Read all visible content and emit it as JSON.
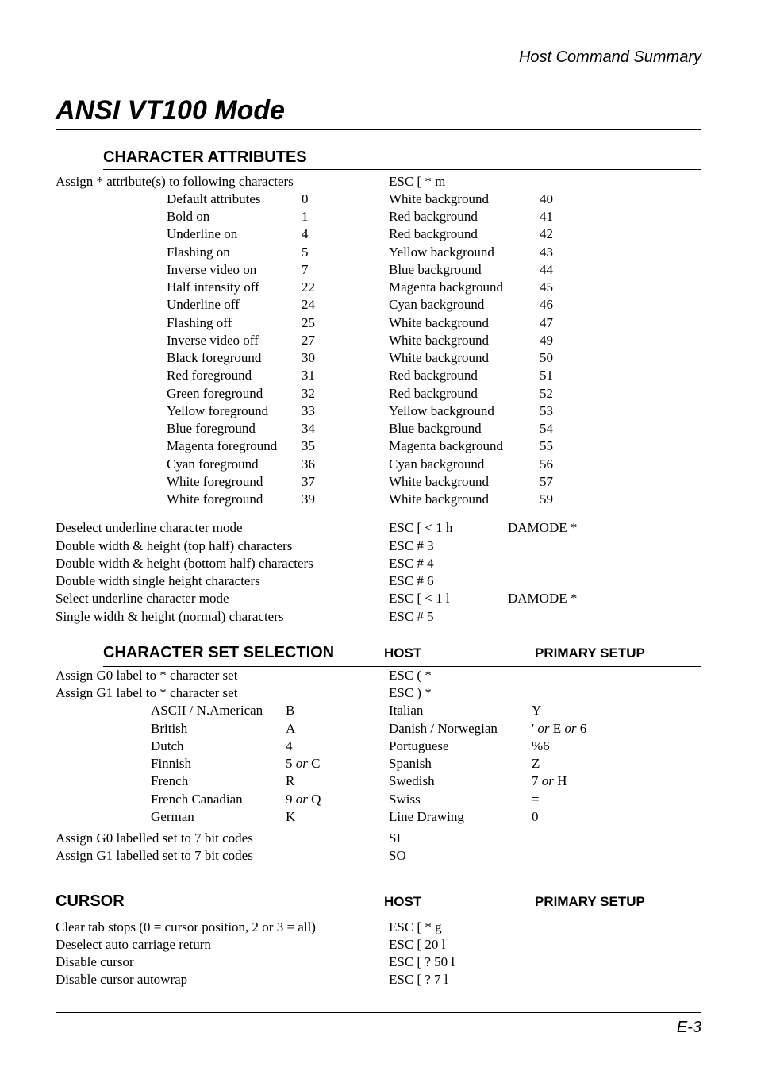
{
  "running_header": "Host Command Summary",
  "main_title": "ANSI VT100 Mode",
  "page_number": "E-3",
  "character_attributes": {
    "heading": "CHARACTER ATTRIBUTES",
    "assign_line": {
      "desc": "Assign * attribute(s) to following characters",
      "host": "ESC [ * m"
    },
    "pairs": [
      {
        "ln": "Default attributes",
        "lc": "0",
        "rn": "White background",
        "rc": "40"
      },
      {
        "ln": "Bold on",
        "lc": "1",
        "rn": "Red background",
        "rc": "41"
      },
      {
        "ln": "Underline on",
        "lc": "4",
        "rn": "Red background",
        "rc": "42"
      },
      {
        "ln": "Flashing on",
        "lc": "5",
        "rn": "Yellow background",
        "rc": "43"
      },
      {
        "ln": "Inverse video on",
        "lc": "7",
        "rn": "Blue background",
        "rc": "44"
      },
      {
        "ln": "Half intensity off",
        "lc": "22",
        "rn": "Magenta background",
        "rc": "45"
      },
      {
        "ln": "Underline off",
        "lc": "24",
        "rn": "Cyan background",
        "rc": "46"
      },
      {
        "ln": "Flashing off",
        "lc": "25",
        "rn": "White background",
        "rc": "47"
      },
      {
        "ln": "Inverse video off",
        "lc": "27",
        "rn": "White background",
        "rc": "49"
      },
      {
        "ln": "Black foreground",
        "lc": "30",
        "rn": "White background",
        "rc": "50"
      },
      {
        "ln": "Red foreground",
        "lc": "31",
        "rn": "Red background",
        "rc": "51"
      },
      {
        "ln": "Green foreground",
        "lc": "32",
        "rn": "Red background",
        "rc": "52"
      },
      {
        "ln": "Yellow foreground",
        "lc": "33",
        "rn": "Yellow background",
        "rc": "53"
      },
      {
        "ln": "Blue foreground",
        "lc": "34",
        "rn": "Blue background",
        "rc": "54"
      },
      {
        "ln": "Magenta foreground",
        "lc": "35",
        "rn": "Magenta background",
        "rc": "55"
      },
      {
        "ln": "Cyan foreground",
        "lc": "36",
        "rn": "Cyan background",
        "rc": "56"
      },
      {
        "ln": "White foreground",
        "lc": "37",
        "rn": "White background",
        "rc": "57"
      },
      {
        "ln": "White foreground",
        "lc": "39",
        "rn": "White background",
        "rc": "59"
      }
    ],
    "commands": [
      {
        "desc": "Deselect underline character mode",
        "host": "ESC [ < 1 h",
        "setup": "DAMODE *"
      },
      {
        "desc": "Double width & height (top half) characters",
        "host": "ESC # 3",
        "setup": ""
      },
      {
        "desc": "Double width & height (bottom half) characters",
        "host": "ESC # 4",
        "setup": ""
      },
      {
        "desc": "Double width single height characters",
        "host": "ESC # 6",
        "setup": ""
      },
      {
        "desc": "Select underline character mode",
        "host": "ESC [ < 1 l",
        "setup": "DAMODE *"
      },
      {
        "desc": "Single width & height (normal) characters",
        "host": "ESC # 5",
        "setup": ""
      }
    ]
  },
  "charset": {
    "heading": "CHARACTER SET SELECTION",
    "host_header": "HOST",
    "primary_header": "PRIMARY SETUP",
    "pre_lines": [
      {
        "desc": "Assign G0 label to * character set",
        "host": "ESC ( *"
      },
      {
        "desc": "Assign G1 label to * character set",
        "host": "ESC ) *"
      }
    ],
    "pairs": [
      {
        "ln": "ASCII / N.American",
        "lc": "B",
        "rn": "Italian",
        "rc": "Y"
      },
      {
        "ln": "British",
        "lc": "A",
        "rn": "Danish / Norwegian",
        "rc_parts": [
          "' ",
          "or",
          " E ",
          "or",
          " 6"
        ]
      },
      {
        "ln": "Dutch",
        "lc": "4",
        "rn": "Portuguese",
        "rc": "%6"
      },
      {
        "ln": "Finnish",
        "lc_parts": [
          "5 ",
          "or",
          " C"
        ],
        "rn": "Spanish",
        "rc": "Z"
      },
      {
        "ln": "French",
        "lc": "R",
        "rn": "Swedish",
        "rc_parts": [
          "7 ",
          "or",
          " H"
        ]
      },
      {
        "ln": "French Canadian",
        "lc_parts": [
          "9 ",
          "or",
          " Q"
        ],
        "rn": "Swiss",
        "rc": "="
      },
      {
        "ln": "German",
        "lc": "K",
        "rn": "Line Drawing",
        "rc": "0"
      }
    ],
    "post_lines": [
      {
        "desc": "Assign G0 labelled set to 7 bit codes",
        "host": "SI"
      },
      {
        "desc": "Assign G1 labelled set to 7 bit codes",
        "host": "SO"
      }
    ]
  },
  "cursor": {
    "heading": "CURSOR",
    "host_header": "HOST",
    "primary_header": "PRIMARY SETUP",
    "lines": [
      {
        "desc": "Clear tab stops (0 = cursor position, 2 or 3 = all)",
        "host": "ESC [ * g"
      },
      {
        "desc": "Deselect auto carriage return",
        "host": "ESC [ 20 l"
      },
      {
        "desc": "Disable cursor",
        "host": "ESC [ ? 50 l"
      },
      {
        "desc": "Disable cursor autowrap",
        "host": "ESC [ ? 7 l"
      }
    ]
  }
}
